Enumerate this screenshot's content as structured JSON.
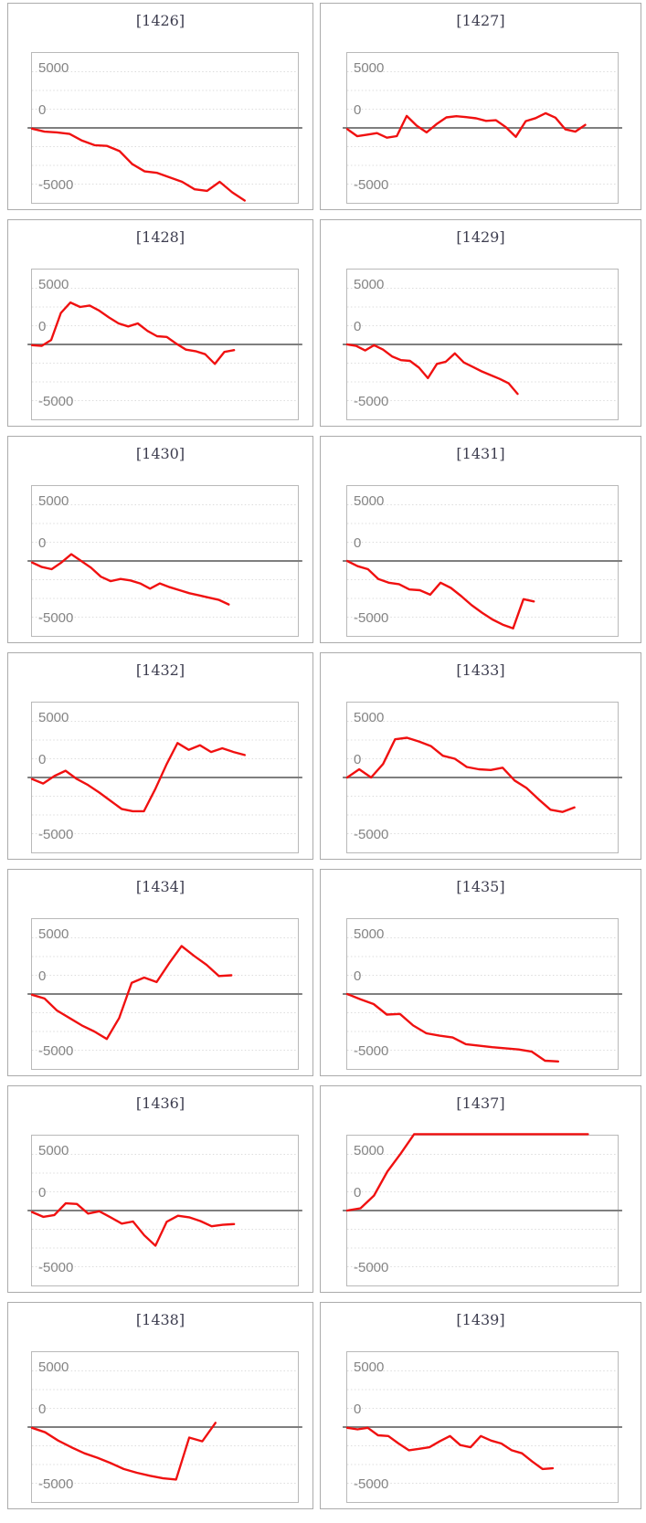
{
  "page": {
    "background": "#ffffff"
  },
  "colors": {
    "line": "#f01010",
    "zero_line": "#7f7f7f",
    "gridline": "#dcdcdc",
    "plot_border": "#b9b9b9",
    "card_border": "#ababab",
    "tick_label": "#848484",
    "title": "#3d3d4f"
  },
  "axis": {
    "tick_labels": [
      "5000",
      "0",
      "-5000"
    ],
    "yticks": [
      5000,
      0,
      -5000
    ],
    "ylim": [
      -5000,
      5000
    ],
    "grid_step": 1250,
    "grid_style": "dotted",
    "clip_max": 5100,
    "clip_min": -5100
  },
  "chart_data": [
    {
      "type": "line",
      "title": "[1426]",
      "ylim": [
        -5000,
        5000
      ],
      "yticks": [
        5000,
        0,
        -5000
      ],
      "end_frac": 0.8,
      "values": [
        -50,
        -250,
        -300,
        -400,
        -850,
        -1150,
        -1200,
        -1550,
        -2400,
        -2900,
        -3000,
        -3300,
        -3600,
        -4100,
        -4200,
        -3600,
        -4300,
        -4850
      ]
    },
    {
      "type": "line",
      "title": "[1427]",
      "ylim": [
        -5000,
        5000
      ],
      "yticks": [
        5000,
        0,
        -5000
      ],
      "end_frac": 0.88,
      "values": [
        -80,
        -550,
        -450,
        -350,
        -650,
        -550,
        800,
        150,
        -300,
        250,
        700,
        780,
        720,
        640,
        470,
        510,
        50,
        -600,
        450,
        650,
        980,
        680,
        -100,
        -250,
        200
      ]
    },
    {
      "type": "line",
      "title": "[1428]",
      "ylim": [
        -5000,
        5000
      ],
      "yticks": [
        5000,
        0,
        -5000
      ],
      "end_frac": 0.76,
      "values": [
        -50,
        -100,
        300,
        2100,
        2800,
        2500,
        2600,
        2250,
        1800,
        1400,
        1200,
        1400,
        900,
        550,
        500,
        50,
        -350,
        -450,
        -650,
        -1300,
        -500,
        -380
      ]
    },
    {
      "type": "line",
      "title": "[1429]",
      "ylim": [
        -5000,
        5000
      ],
      "yticks": [
        5000,
        0,
        -5000
      ],
      "end_frac": 0.63,
      "values": [
        0,
        -100,
        -400,
        -50,
        -350,
        -800,
        -1050,
        -1100,
        -1550,
        -2250,
        -1300,
        -1150,
        -600,
        -1200,
        -1500,
        -1800,
        -2050,
        -2300,
        -2600,
        -3300
      ]
    },
    {
      "type": "line",
      "title": "[1430]",
      "ylim": [
        -5000,
        5000
      ],
      "yticks": [
        5000,
        0,
        -5000
      ],
      "end_frac": 0.74,
      "values": [
        -100,
        -400,
        -550,
        -100,
        450,
        0,
        -450,
        -1050,
        -1350,
        -1200,
        -1300,
        -1500,
        -1850,
        -1500,
        -1750,
        -1950,
        -2150,
        -2300,
        -2450,
        -2600,
        -2900
      ]
    },
    {
      "type": "line",
      "title": "[1431]",
      "ylim": [
        -5000,
        5000
      ],
      "yticks": [
        5000,
        0,
        -5000
      ],
      "end_frac": 0.69,
      "values": [
        0,
        -350,
        -550,
        -1200,
        -1450,
        -1550,
        -1900,
        -1950,
        -2250,
        -1450,
        -1800,
        -2350,
        -2950,
        -3450,
        -3900,
        -4250,
        -4500,
        -2550,
        -2700
      ]
    },
    {
      "type": "line",
      "title": "[1432]",
      "ylim": [
        -5000,
        5000
      ],
      "yticks": [
        5000,
        0,
        -5000
      ],
      "end_frac": 0.8,
      "values": [
        -100,
        -400,
        100,
        450,
        -100,
        -500,
        -1000,
        -1550,
        -2100,
        -2250,
        -2250,
        -800,
        850,
        2300,
        1850,
        2150,
        1700,
        1950,
        1700,
        1500
      ]
    },
    {
      "type": "line",
      "title": "[1433]",
      "ylim": [
        -5000,
        5000
      ],
      "yticks": [
        5000,
        0,
        -5000
      ],
      "end_frac": 0.84,
      "values": [
        0,
        550,
        0,
        900,
        2550,
        2650,
        2400,
        2100,
        1450,
        1250,
        700,
        550,
        500,
        650,
        -200,
        -700,
        -1450,
        -2150,
        -2300,
        -2000
      ]
    },
    {
      "type": "line",
      "title": "[1434]",
      "ylim": [
        -5000,
        5000
      ],
      "yticks": [
        5000,
        0,
        -5000
      ],
      "end_frac": 0.75,
      "values": [
        -50,
        -300,
        -1100,
        -1600,
        -2100,
        -2500,
        -3000,
        -1600,
        750,
        1100,
        800,
        2050,
        3200,
        2550,
        1950,
        1200,
        1250
      ]
    },
    {
      "type": "line",
      "title": "[1435]",
      "ylim": [
        -5000,
        5000
      ],
      "yticks": [
        5000,
        0,
        -5000
      ],
      "end_frac": 0.78,
      "values": [
        0,
        -350,
        -670,
        -1370,
        -1330,
        -2100,
        -2620,
        -2780,
        -2900,
        -3350,
        -3450,
        -3550,
        -3620,
        -3700,
        -3850,
        -4450,
        -4500
      ]
    },
    {
      "type": "line",
      "title": "[1436]",
      "ylim": [
        -5000,
        5000
      ],
      "yticks": [
        5000,
        0,
        -5000
      ],
      "end_frac": 0.76,
      "values": [
        -100,
        -420,
        -300,
        480,
        440,
        -200,
        -50,
        -450,
        -870,
        -730,
        -1650,
        -2350,
        -750,
        -350,
        -450,
        -700,
        -1050,
        -950,
        -900
      ]
    },
    {
      "type": "line",
      "title": "[1437]",
      "ylim": [
        -5000,
        5000
      ],
      "yticks": [
        5000,
        0,
        -5000
      ],
      "end_frac": 0.89,
      "values": [
        0,
        150,
        1000,
        2600,
        3800,
        5300,
        5500,
        5500,
        5500,
        5500,
        5500,
        5500,
        5500,
        5500,
        5500,
        5500,
        5500,
        5500,
        5500
      ]
    },
    {
      "type": "line",
      "title": "[1438]",
      "ylim": [
        -5000,
        5000
      ],
      "yticks": [
        5000,
        0,
        -5000
      ],
      "end_frac": 0.69,
      "values": [
        -50,
        -350,
        -900,
        -1350,
        -1750,
        -2050,
        -2400,
        -2800,
        -3050,
        -3250,
        -3420,
        -3500,
        -700,
        -950,
        280
      ]
    },
    {
      "type": "line",
      "title": "[1439]",
      "ylim": [
        -5000,
        5000
      ],
      "yticks": [
        5000,
        0,
        -5000
      ],
      "end_frac": 0.76,
      "values": [
        -50,
        -150,
        -50,
        -550,
        -600,
        -1100,
        -1550,
        -1450,
        -1350,
        -950,
        -600,
        -1200,
        -1350,
        -600,
        -900,
        -1100,
        -1550,
        -1750,
        -2300,
        -2800,
        -2750
      ]
    }
  ]
}
